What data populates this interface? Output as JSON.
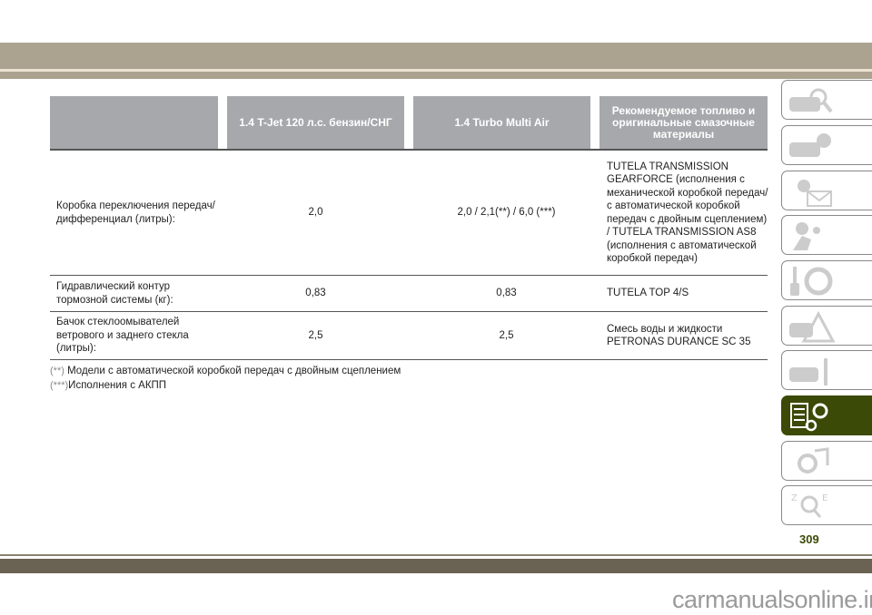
{
  "table": {
    "headers": [
      "",
      "1.4 T-Jet 120 л.с. бензин/СНГ",
      "1.4 Turbo Multi Air",
      "Рекомендуемое топливо и оригинальные смазочные материалы"
    ],
    "rows": [
      {
        "label": "Коробка переключения передач/дифференциал (литры):",
        "v1": "2,0",
        "v2": "2,0 / 2,1(**) / 6,0 (***)",
        "product": "TUTELA TRANSMISSION GEARFORCE (исполнения с механической коробкой передач/ с автоматической коробкой передач с двойным сцеплением) / TUTELA TRANSMISSION AS8 (исполнения с автоматической коробкой передач)"
      },
      {
        "label": "Гидравлический контур тормозной системы (кг):",
        "v1": "0,83",
        "v2": "0,83",
        "product": "TUTELA TOP 4/S"
      },
      {
        "label": "Бачок стеклоомывателей ветрового и заднего стекла (литры):",
        "v1": "2,5",
        "v2": "2,5",
        "product": "Смесь воды и жидкости PETRONAS DURANCE SC 35"
      }
    ]
  },
  "footnotes": [
    {
      "mark": "(**)",
      "text": " Модели с автоматической коробкой передач с двойным сцеплением"
    },
    {
      "mark": "(***)",
      "text": "Исполнения с АКПП"
    }
  ],
  "sidebar": {
    "tabs": [
      {
        "icon": "car-search-icon",
        "active": false
      },
      {
        "icon": "car-info-icon",
        "active": false
      },
      {
        "icon": "warning-light-mail-icon",
        "active": false
      },
      {
        "icon": "seat-airbag-icon",
        "active": false
      },
      {
        "icon": "key-steering-wheel-icon",
        "active": false
      },
      {
        "icon": "car-warning-triangle-icon",
        "active": false
      },
      {
        "icon": "car-wrench-icon",
        "active": false
      },
      {
        "icon": "specs-gears-icon",
        "active": true
      },
      {
        "icon": "radio-music-icon",
        "active": false
      },
      {
        "icon": "alphabet-index-search-icon",
        "active": false
      }
    ]
  },
  "page_number": "309",
  "watermark": "carmanualsonline.info",
  "colors": {
    "band": "#aba390",
    "accent": "#3b4a06",
    "header": "#a7a8ac",
    "bottom": "#6a6252"
  }
}
